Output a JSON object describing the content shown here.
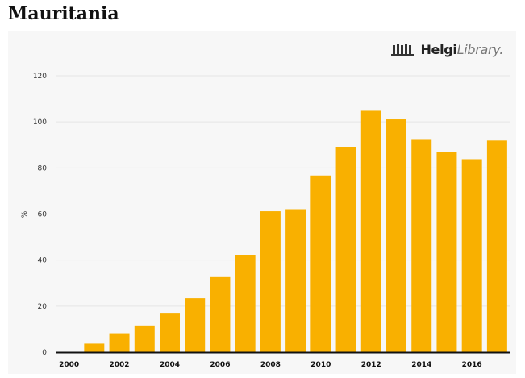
{
  "page": {
    "title": "Mauritania"
  },
  "brand": {
    "part1": "Helgi",
    "part2": "Library."
  },
  "chart_data": {
    "type": "bar",
    "ylabel": "%",
    "ylim": [
      0,
      120
    ],
    "yticks": [
      0,
      20,
      40,
      60,
      80,
      100,
      120
    ],
    "x": [
      2000,
      2001,
      2002,
      2003,
      2004,
      2005,
      2006,
      2007,
      2008,
      2009,
      2010,
      2011,
      2012,
      2013,
      2014,
      2015,
      2016,
      2017
    ],
    "values": [
      0,
      3.7,
      8.2,
      11.6,
      17.1,
      23.4,
      32.6,
      42.3,
      61.2,
      62.1,
      76.7,
      89.2,
      104.8,
      101.1,
      92.2,
      86.9,
      83.8,
      91.9
    ],
    "xtick_labels": [
      "2000",
      "2002",
      "2004",
      "2006",
      "2008",
      "2010",
      "2012",
      "2014",
      "2016"
    ],
    "bar_color": "#f9b000",
    "grid": true
  }
}
